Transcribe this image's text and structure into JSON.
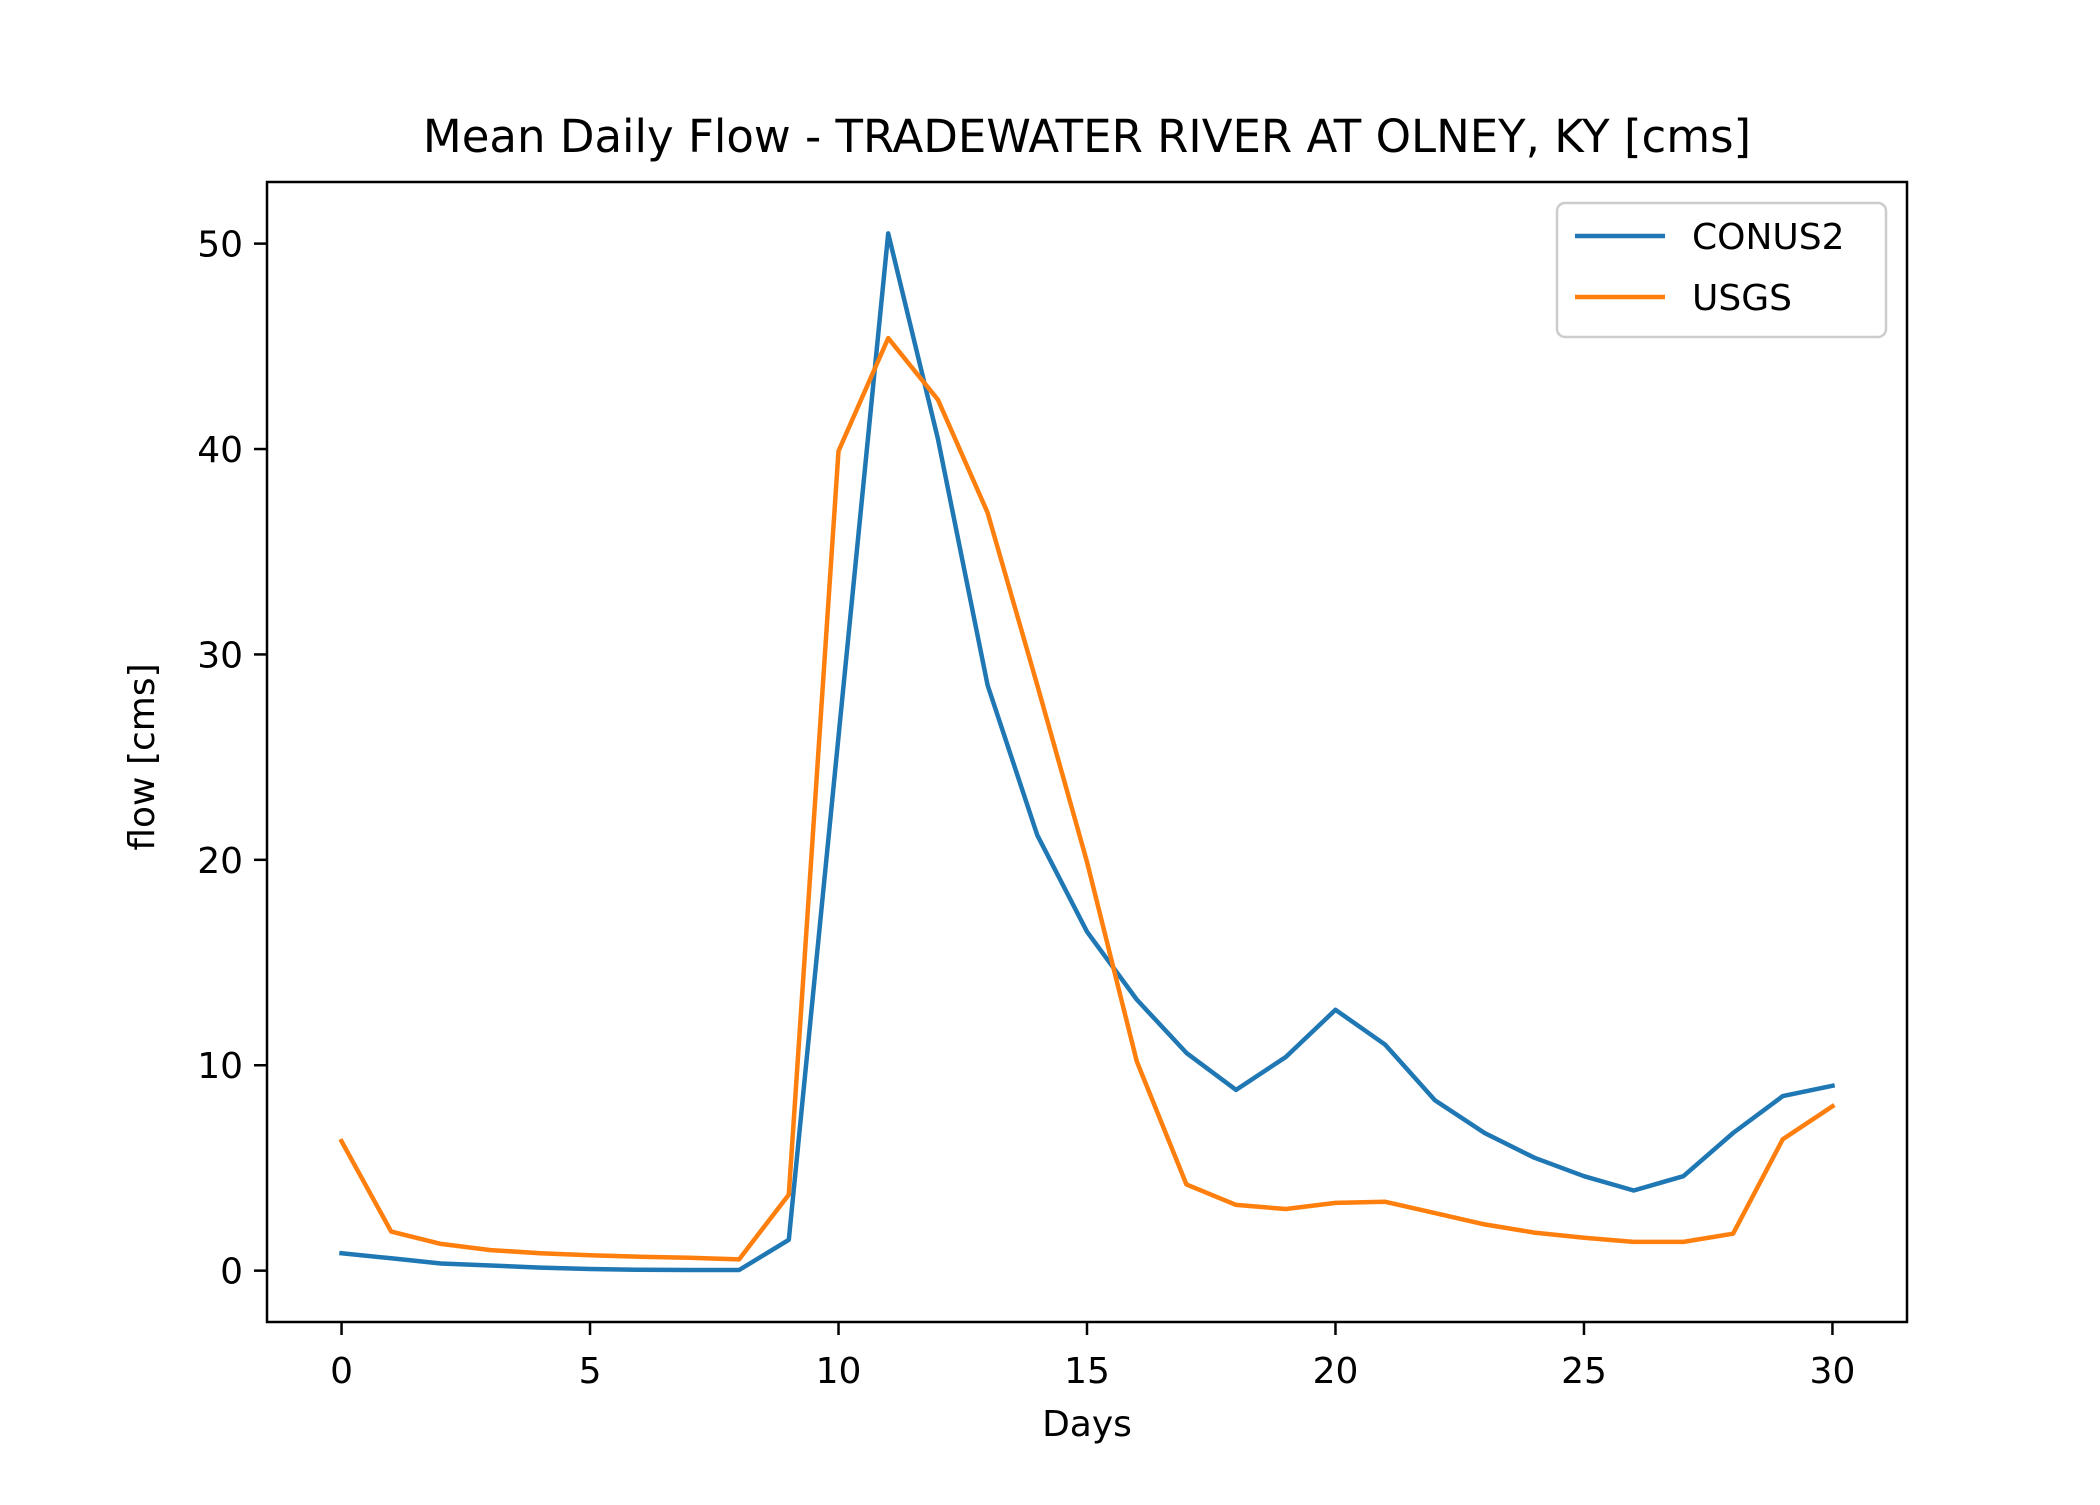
{
  "chart_data": {
    "type": "line",
    "title": "Mean Daily Flow - TRADEWATER RIVER AT OLNEY, KY [cms]",
    "xlabel": "Days",
    "ylabel": "flow [cms]",
    "xlim": [
      -1.5,
      31.5
    ],
    "ylim": [
      -2.5,
      53
    ],
    "xticks": [
      0,
      5,
      10,
      15,
      20,
      25,
      30
    ],
    "yticks": [
      0,
      10,
      20,
      30,
      40,
      50
    ],
    "grid": false,
    "legend_position": "upper right",
    "x": [
      0,
      1,
      2,
      3,
      4,
      5,
      6,
      7,
      8,
      9,
      10,
      11,
      12,
      13,
      14,
      15,
      16,
      17,
      18,
      19,
      20,
      21,
      22,
      23,
      24,
      25,
      26,
      27,
      28,
      29,
      30
    ],
    "series": [
      {
        "name": "CONUS2",
        "color": "#1f77b4",
        "values": [
          0.85,
          0.6,
          0.35,
          0.25,
          0.15,
          0.08,
          0.04,
          0.03,
          0.03,
          1.5,
          26.0,
          50.5,
          40.5,
          28.5,
          21.2,
          16.5,
          13.2,
          10.6,
          8.8,
          10.4,
          12.7,
          11.0,
          8.3,
          6.7,
          5.5,
          4.6,
          3.9,
          4.6,
          6.7,
          8.5,
          9.0
        ]
      },
      {
        "name": "USGS",
        "color": "#ff7f0e",
        "values": [
          6.3,
          1.9,
          1.3,
          1.0,
          0.85,
          0.75,
          0.68,
          0.63,
          0.55,
          3.7,
          39.9,
          45.4,
          42.4,
          36.9,
          28.5,
          19.9,
          10.2,
          4.2,
          3.2,
          3.0,
          3.3,
          3.35,
          2.8,
          2.25,
          1.85,
          1.6,
          1.4,
          1.4,
          1.8,
          6.4,
          8.0
        ]
      }
    ]
  }
}
